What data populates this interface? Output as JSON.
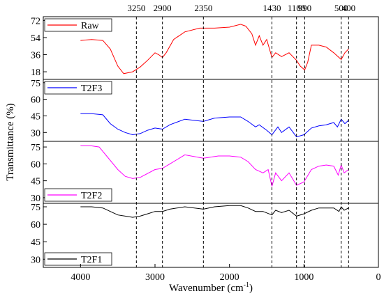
{
  "chart_data": {
    "type": "line",
    "xlabel": "Wavenumber (cm",
    "xlabel_sup": "-1",
    "xlabel_suffix": ")",
    "ylabel": "Transmittance (%)",
    "xlim": [
      4500,
      0
    ],
    "x_ticks": [
      "4000",
      "3000",
      "2000",
      "1000",
      "0"
    ],
    "x_tick_values": [
      4000,
      3000,
      2000,
      1000,
      0
    ],
    "reference_lines": [
      {
        "label": "3250",
        "x": 3250
      },
      {
        "label": "2900",
        "x": 2900
      },
      {
        "label": "2350",
        "x": 2350
      },
      {
        "label": "1430",
        "x": 1430
      },
      {
        "label": "1100",
        "x": 1100
      },
      {
        "label": "990",
        "x": 990
      },
      {
        "label": "500",
        "x": 500
      },
      {
        "label": "400",
        "x": 400
      }
    ],
    "panels": [
      {
        "series_name": "Raw",
        "color": "#ff0000",
        "ylim": [
          10,
          76
        ],
        "y_ticks": [
          "72",
          "54",
          "36",
          "18"
        ],
        "y_tick_values": [
          72,
          54,
          36,
          18
        ],
        "points": [
          [
            4000,
            51
          ],
          [
            3850,
            52
          ],
          [
            3700,
            51
          ],
          [
            3600,
            42
          ],
          [
            3500,
            24
          ],
          [
            3420,
            16
          ],
          [
            3300,
            18
          ],
          [
            3200,
            23
          ],
          [
            3100,
            30
          ],
          [
            3000,
            38
          ],
          [
            2950,
            36
          ],
          [
            2900,
            33
          ],
          [
            2850,
            38
          ],
          [
            2750,
            52
          ],
          [
            2600,
            60
          ],
          [
            2400,
            64
          ],
          [
            2200,
            64
          ],
          [
            2000,
            65
          ],
          [
            1850,
            68
          ],
          [
            1780,
            66
          ],
          [
            1700,
            58
          ],
          [
            1650,
            46
          ],
          [
            1600,
            56
          ],
          [
            1550,
            46
          ],
          [
            1500,
            52
          ],
          [
            1430,
            33
          ],
          [
            1380,
            38
          ],
          [
            1300,
            34
          ],
          [
            1200,
            38
          ],
          [
            1100,
            30
          ],
          [
            1050,
            24
          ],
          [
            990,
            20
          ],
          [
            950,
            28
          ],
          [
            900,
            46
          ],
          [
            800,
            46
          ],
          [
            700,
            44
          ],
          [
            600,
            38
          ],
          [
            500,
            31
          ],
          [
            450,
            38
          ],
          [
            400,
            42
          ]
        ]
      },
      {
        "series_name": "T2F3",
        "color": "#0000ff",
        "ylim": [
          22,
          78
        ],
        "y_ticks": [
          "75",
          "60",
          "45",
          "30"
        ],
        "y_tick_values": [
          75,
          60,
          45,
          30
        ],
        "points": [
          [
            4000,
            47
          ],
          [
            3850,
            47
          ],
          [
            3700,
            46
          ],
          [
            3600,
            38
          ],
          [
            3500,
            33
          ],
          [
            3400,
            30
          ],
          [
            3300,
            28
          ],
          [
            3200,
            29
          ],
          [
            3100,
            32
          ],
          [
            3000,
            34
          ],
          [
            2900,
            33
          ],
          [
            2800,
            37
          ],
          [
            2600,
            42
          ],
          [
            2350,
            40
          ],
          [
            2200,
            43
          ],
          [
            2000,
            44
          ],
          [
            1850,
            44
          ],
          [
            1750,
            40
          ],
          [
            1650,
            35
          ],
          [
            1600,
            37
          ],
          [
            1500,
            32
          ],
          [
            1430,
            28
          ],
          [
            1350,
            35
          ],
          [
            1300,
            30
          ],
          [
            1200,
            35
          ],
          [
            1100,
            26
          ],
          [
            1000,
            28
          ],
          [
            900,
            34
          ],
          [
            800,
            36
          ],
          [
            700,
            37
          ],
          [
            600,
            39
          ],
          [
            550,
            35
          ],
          [
            500,
            42
          ],
          [
            450,
            38
          ],
          [
            400,
            41
          ]
        ]
      },
      {
        "series_name": "T2F2",
        "color": "#ff00ff",
        "ylim": [
          25,
          80
        ],
        "y_ticks": [
          "75",
          "60",
          "45",
          "30"
        ],
        "y_tick_values": [
          75,
          60,
          45,
          30
        ],
        "points": [
          [
            4000,
            76
          ],
          [
            3850,
            76
          ],
          [
            3750,
            75
          ],
          [
            3650,
            67
          ],
          [
            3500,
            55
          ],
          [
            3400,
            49
          ],
          [
            3300,
            47
          ],
          [
            3200,
            48
          ],
          [
            3000,
            55
          ],
          [
            2900,
            56
          ],
          [
            2800,
            60
          ],
          [
            2600,
            68
          ],
          [
            2350,
            65
          ],
          [
            2150,
            67
          ],
          [
            2000,
            67
          ],
          [
            1850,
            66
          ],
          [
            1750,
            62
          ],
          [
            1650,
            55
          ],
          [
            1550,
            52
          ],
          [
            1480,
            55
          ],
          [
            1430,
            40
          ],
          [
            1380,
            52
          ],
          [
            1300,
            45
          ],
          [
            1200,
            52
          ],
          [
            1100,
            41
          ],
          [
            1000,
            44
          ],
          [
            900,
            55
          ],
          [
            800,
            58
          ],
          [
            700,
            59
          ],
          [
            600,
            58
          ],
          [
            540,
            50
          ],
          [
            500,
            59
          ],
          [
            460,
            52
          ],
          [
            400,
            55
          ]
        ]
      },
      {
        "series_name": "T2F1",
        "color": "#000000",
        "ylim": [
          23,
          78
        ],
        "y_ticks": [
          "75",
          "60",
          "45",
          "30"
        ],
        "y_tick_values": [
          75,
          60,
          45,
          30
        ],
        "points": [
          [
            4000,
            75
          ],
          [
            3850,
            75
          ],
          [
            3700,
            74
          ],
          [
            3600,
            71
          ],
          [
            3500,
            68
          ],
          [
            3400,
            67
          ],
          [
            3300,
            66
          ],
          [
            3200,
            67
          ],
          [
            3100,
            69
          ],
          [
            3000,
            71
          ],
          [
            2900,
            71
          ],
          [
            2800,
            73
          ],
          [
            2600,
            75
          ],
          [
            2350,
            73
          ],
          [
            2200,
            75
          ],
          [
            2000,
            76
          ],
          [
            1850,
            76
          ],
          [
            1750,
            74
          ],
          [
            1650,
            71
          ],
          [
            1550,
            71
          ],
          [
            1430,
            68
          ],
          [
            1380,
            72
          ],
          [
            1300,
            70
          ],
          [
            1200,
            72
          ],
          [
            1100,
            67
          ],
          [
            1000,
            69
          ],
          [
            900,
            72
          ],
          [
            800,
            74
          ],
          [
            700,
            74
          ],
          [
            600,
            74
          ],
          [
            530,
            71
          ],
          [
            500,
            75
          ],
          [
            460,
            72
          ],
          [
            400,
            74
          ]
        ]
      }
    ]
  }
}
